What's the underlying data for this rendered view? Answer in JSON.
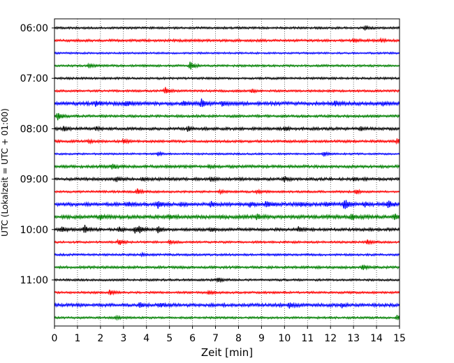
{
  "chart_data": {
    "type": "line",
    "title": "",
    "xlabel": "Zeit  [min]",
    "ylabel": "UTC (Lokalzeit = UTC + 01:00)",
    "xlim": [
      0,
      15
    ],
    "x_ticks": [
      0,
      1,
      2,
      3,
      4,
      5,
      6,
      7,
      8,
      9,
      10,
      11,
      12,
      13,
      14,
      15
    ],
    "x_tick_labels": [
      "0",
      "1",
      "2",
      "3",
      "4",
      "5",
      "6",
      "7",
      "8",
      "9",
      "10",
      "11",
      "12",
      "13",
      "14",
      "15"
    ],
    "vertical_grid": true,
    "grid_style": "dotted",
    "trace_interval_minutes": 15,
    "y_tick_labels": [
      {
        "label": "06:00",
        "trace": 0
      },
      {
        "label": "07:00",
        "trace": 4
      },
      {
        "label": "08:00",
        "trace": 8
      },
      {
        "label": "09:00",
        "trace": 12
      },
      {
        "label": "10:00",
        "trace": 16
      },
      {
        "label": "11:00",
        "trace": 20
      }
    ],
    "color_cycle": [
      "#000000",
      "#ff0000",
      "#0000ff",
      "#008000"
    ],
    "series": [
      {
        "start": "06:00",
        "color": "#000000",
        "noise": 0.6,
        "events": [
          {
            "x": 13.5,
            "a": 2.0
          }
        ]
      },
      {
        "start": "06:15",
        "color": "#ff0000",
        "noise": 0.7,
        "events": [
          {
            "x": 13.0,
            "a": 1.5
          },
          {
            "x": 14.2,
            "a": 1.2
          }
        ]
      },
      {
        "start": "06:30",
        "color": "#0000ff",
        "noise": 0.5,
        "events": []
      },
      {
        "start": "06:45",
        "color": "#008000",
        "noise": 0.6,
        "events": [
          {
            "x": 1.5,
            "a": 1.5
          },
          {
            "x": 5.9,
            "a": 4.0
          }
        ]
      },
      {
        "start": "07:00",
        "color": "#000000",
        "noise": 0.6,
        "events": []
      },
      {
        "start": "07:15",
        "color": "#ff0000",
        "noise": 0.6,
        "events": [
          {
            "x": 4.8,
            "a": 3.0
          },
          {
            "x": 8.6,
            "a": 1.5
          }
        ]
      },
      {
        "start": "07:30",
        "color": "#0000ff",
        "noise": 1.0,
        "events": [
          {
            "x": 1.8,
            "a": 2.0
          },
          {
            "x": 3.1,
            "a": 2.0
          },
          {
            "x": 5.6,
            "a": 2.0
          },
          {
            "x": 6.4,
            "a": 3.5
          },
          {
            "x": 7.3,
            "a": 2.0
          },
          {
            "x": 12.2,
            "a": 2.0
          },
          {
            "x": 14.3,
            "a": 1.5
          }
        ]
      },
      {
        "start": "07:45",
        "color": "#008000",
        "noise": 0.7,
        "events": [
          {
            "x": 0.15,
            "a": 3.5
          }
        ]
      },
      {
        "start": "08:00",
        "color": "#000000",
        "noise": 0.8,
        "events": [
          {
            "x": 0.4,
            "a": 2.0
          },
          {
            "x": 1.8,
            "a": 1.2
          },
          {
            "x": 5.8,
            "a": 2.0
          },
          {
            "x": 10.0,
            "a": 1.5
          },
          {
            "x": 13.3,
            "a": 1.5
          }
        ]
      },
      {
        "start": "08:15",
        "color": "#ff0000",
        "noise": 0.7,
        "events": [
          {
            "x": 1.5,
            "a": 1.5
          },
          {
            "x": 3.0,
            "a": 2.0
          },
          {
            "x": 14.9,
            "a": 2.5
          }
        ]
      },
      {
        "start": "08:30",
        "color": "#0000ff",
        "noise": 0.5,
        "events": [
          {
            "x": 4.5,
            "a": 1.5
          },
          {
            "x": 11.7,
            "a": 2.0
          }
        ]
      },
      {
        "start": "08:45",
        "color": "#008000",
        "noise": 0.8,
        "events": [
          {
            "x": 2.5,
            "a": 2.5
          },
          {
            "x": 6.7,
            "a": 1.2
          }
        ]
      },
      {
        "start": "09:00",
        "color": "#000000",
        "noise": 0.8,
        "events": [
          {
            "x": 2.7,
            "a": 2.0
          },
          {
            "x": 3.8,
            "a": 1.5
          },
          {
            "x": 6.8,
            "a": 1.5
          },
          {
            "x": 10.0,
            "a": 2.0
          },
          {
            "x": 13.0,
            "a": 1.5
          }
        ]
      },
      {
        "start": "09:15",
        "color": "#ff0000",
        "noise": 0.6,
        "events": [
          {
            "x": 3.6,
            "a": 2.5
          },
          {
            "x": 7.2,
            "a": 1.5
          },
          {
            "x": 8.8,
            "a": 1.5
          },
          {
            "x": 13.1,
            "a": 2.0
          }
        ]
      },
      {
        "start": "09:30",
        "color": "#0000ff",
        "noise": 1.0,
        "events": [
          {
            "x": 3.2,
            "a": 2.0
          },
          {
            "x": 4.5,
            "a": 3.0
          },
          {
            "x": 5.5,
            "a": 1.5
          },
          {
            "x": 6.8,
            "a": 2.0
          },
          {
            "x": 8.5,
            "a": 2.0
          },
          {
            "x": 9.2,
            "a": 2.0
          },
          {
            "x": 10.7,
            "a": 2.0
          },
          {
            "x": 11.8,
            "a": 1.5
          },
          {
            "x": 12.6,
            "a": 4.5
          },
          {
            "x": 13.5,
            "a": 1.5
          },
          {
            "x": 14.5,
            "a": 3.5
          }
        ]
      },
      {
        "start": "09:45",
        "color": "#008000",
        "noise": 1.0,
        "events": [
          {
            "x": 2.0,
            "a": 1.5
          },
          {
            "x": 5.0,
            "a": 1.5
          },
          {
            "x": 8.8,
            "a": 2.0
          },
          {
            "x": 12.9,
            "a": 2.5
          },
          {
            "x": 14.8,
            "a": 2.5
          }
        ]
      },
      {
        "start": "10:00",
        "color": "#000000",
        "noise": 0.8,
        "events": [
          {
            "x": 0.3,
            "a": 2.0
          },
          {
            "x": 1.3,
            "a": 4.0
          },
          {
            "x": 2.8,
            "a": 2.0
          },
          {
            "x": 3.5,
            "a": 3.0
          },
          {
            "x": 3.7,
            "a": 2.5
          },
          {
            "x": 4.5,
            "a": 2.5
          },
          {
            "x": 6.8,
            "a": 1.5
          },
          {
            "x": 10.6,
            "a": 2.0
          }
        ]
      },
      {
        "start": "10:15",
        "color": "#ff0000",
        "noise": 0.6,
        "events": [
          {
            "x": 2.8,
            "a": 2.5
          },
          {
            "x": 5.0,
            "a": 1.5
          },
          {
            "x": 13.6,
            "a": 2.5
          }
        ]
      },
      {
        "start": "10:30",
        "color": "#0000ff",
        "noise": 0.6,
        "events": [
          {
            "x": 3.8,
            "a": 1.2
          }
        ]
      },
      {
        "start": "10:45",
        "color": "#008000",
        "noise": 0.7,
        "events": [
          {
            "x": 13.4,
            "a": 2.5
          }
        ]
      },
      {
        "start": "11:00",
        "color": "#000000",
        "noise": 0.6,
        "events": [
          {
            "x": 7.1,
            "a": 2.0
          }
        ]
      },
      {
        "start": "11:15",
        "color": "#ff0000",
        "noise": 0.6,
        "events": [
          {
            "x": 2.4,
            "a": 2.5
          },
          {
            "x": 6.7,
            "a": 1.5
          }
        ]
      },
      {
        "start": "11:30",
        "color": "#0000ff",
        "noise": 0.9,
        "events": [
          {
            "x": 3.7,
            "a": 2.0
          },
          {
            "x": 4.6,
            "a": 2.0
          },
          {
            "x": 10.2,
            "a": 2.5
          },
          {
            "x": 12.5,
            "a": 1.5
          }
        ]
      },
      {
        "start": "11:45",
        "color": "#008000",
        "noise": 0.6,
        "events": [
          {
            "x": 2.7,
            "a": 1.5
          },
          {
            "x": 14.9,
            "a": 2.0
          }
        ]
      }
    ]
  }
}
